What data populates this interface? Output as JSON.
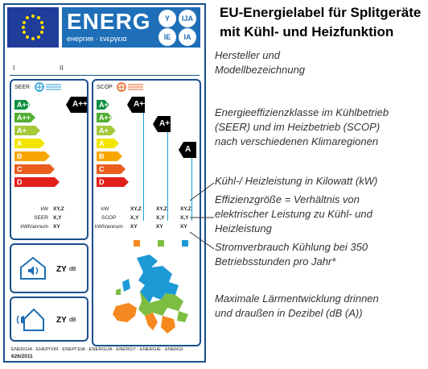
{
  "energy_label": {
    "brand_word": "ENERG",
    "brand_sub": "енергия · ενεργεια",
    "lang_badges": [
      "Y",
      "IJA",
      "IE",
      "IA"
    ],
    "supplier_marks": [
      "I",
      "II"
    ],
    "seer": {
      "label": "SEER",
      "classes": [
        "A+++",
        "A++",
        "A+",
        "A",
        "B",
        "C",
        "D"
      ],
      "class_colors": [
        "#0f9140",
        "#52ae32",
        "#a6c93a",
        "#f2e500",
        "#f7a500",
        "#e95d1e",
        "#e2211c"
      ],
      "indicated_class": "A+++",
      "rows": [
        {
          "label": "kW",
          "value": "XY,Z"
        },
        {
          "label": "SEER",
          "value": "X,Y"
        },
        {
          "label": "kWh/annum",
          "value": "XY"
        }
      ]
    },
    "scop": {
      "label": "SCOP",
      "classes": [
        "A+++",
        "A++",
        "A+",
        "A",
        "B",
        "C",
        "D"
      ],
      "indicated_classes": [
        "A+++",
        "A+",
        "A"
      ],
      "rows": [
        {
          "label": "kW",
          "values": [
            "XY,Z",
            "XY,Z",
            "XY,Z"
          ]
        },
        {
          "label": "SCOP",
          "values": [
            "X,Y",
            "X,Y",
            "X,Y"
          ]
        },
        {
          "label": "kWh/annum",
          "values": [
            "XY",
            "XY",
            "XY"
          ]
        }
      ],
      "zone_colors": [
        "#f5891f",
        "#7dbd42",
        "#1c9ad6"
      ]
    },
    "noise_indoor": {
      "value": "ZY",
      "unit": "dB"
    },
    "noise_outdoor": {
      "value": "ZY",
      "unit": "dB"
    },
    "footer_languages": "ENERGIA · ЕНЕРГИЯ · ΕΝΕΡΓΕΙΑ · ENERGIJA · ENERGY · ENERGIE · ENERGI",
    "regulation": "626/2011"
  },
  "annotations": {
    "title_line1": "EU-Energielabel für Splitgeräte",
    "title_line2": "mit Kühl- und Heizfunktion",
    "manufacturer_line1": "Hersteller und",
    "manufacturer_line2": "Modellbezeichnung",
    "efficiency_line1": "Energieeffizienzklasse im Kühlbetrieb",
    "efficiency_line2": "(SEER) und  im Heizbetrieb (SCOP)",
    "efficiency_line3": "nach verschiedenen Klimaregionen",
    "capacity": "Kühl-/ Heizleistung in Kilowatt (kW)",
    "ratio_line1": "Effizienzgröße = Verhältnis von",
    "ratio_line2": "elektrischer  Leistung zu Kühl- und",
    "ratio_line3": "Heizleistung",
    "consumption_line1": "Stromverbrauch Kühlung bei 350",
    "consumption_line2": "Betriebsstunden pro Jahr*",
    "noise_line1": "Maximale Lärmentwicklung drinnen",
    "noise_line2": "und draußen in Dezibel (dB (A))"
  }
}
